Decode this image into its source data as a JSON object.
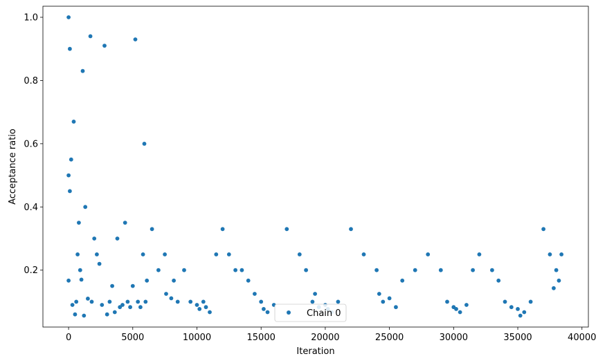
{
  "chart_data": {
    "type": "scatter",
    "xlabel": "Iteration",
    "ylabel": "Acceptance ratio",
    "xlim": [
      -2000,
      40500
    ],
    "ylim": [
      0.02,
      1.035
    ],
    "xticks": [
      0,
      5000,
      10000,
      15000,
      20000,
      25000,
      30000,
      35000,
      40000
    ],
    "xtick_labels": [
      "0",
      "5000",
      "10000",
      "15000",
      "20000",
      "25000",
      "30000",
      "35000",
      "40000"
    ],
    "yticks": [
      0.2,
      0.4,
      0.6,
      0.8,
      1.0
    ],
    "ytick_labels": [
      "0.2",
      "0.4",
      "0.6",
      "0.8",
      "1.0"
    ],
    "grid": false,
    "legend_position": "lower center",
    "series": [
      {
        "name": "Chain 0",
        "color": "#1f77b4",
        "marker": "dot",
        "points": [
          [
            0,
            0.167
          ],
          [
            0,
            1.0
          ],
          [
            0,
            0.5
          ],
          [
            100,
            0.9
          ],
          [
            100,
            0.45
          ],
          [
            200,
            0.55
          ],
          [
            300,
            0.09
          ],
          [
            400,
            0.67
          ],
          [
            500,
            0.06
          ],
          [
            600,
            0.1
          ],
          [
            700,
            0.25
          ],
          [
            800,
            0.35
          ],
          [
            900,
            0.2
          ],
          [
            1000,
            0.17
          ],
          [
            1100,
            0.83
          ],
          [
            1200,
            0.056
          ],
          [
            1300,
            0.4
          ],
          [
            1500,
            0.11
          ],
          [
            1700,
            0.94
          ],
          [
            1800,
            0.1
          ],
          [
            2000,
            0.3
          ],
          [
            2200,
            0.25
          ],
          [
            2400,
            0.22
          ],
          [
            2600,
            0.09
          ],
          [
            2800,
            0.91
          ],
          [
            3000,
            0.06
          ],
          [
            3200,
            0.1
          ],
          [
            3400,
            0.15
          ],
          [
            3600,
            0.067
          ],
          [
            3800,
            0.3
          ],
          [
            4000,
            0.083
          ],
          [
            4200,
            0.09
          ],
          [
            4400,
            0.35
          ],
          [
            4600,
            0.1
          ],
          [
            4800,
            0.083
          ],
          [
            5000,
            0.15
          ],
          [
            5200,
            0.93
          ],
          [
            5400,
            0.1
          ],
          [
            5600,
            0.083
          ],
          [
            5800,
            0.25
          ],
          [
            5900,
            0.6
          ],
          [
            6000,
            0.1
          ],
          [
            6100,
            0.167
          ],
          [
            6500,
            0.33
          ],
          [
            7000,
            0.2
          ],
          [
            7500,
            0.25
          ],
          [
            7600,
            0.125
          ],
          [
            8000,
            0.111
          ],
          [
            8200,
            0.167
          ],
          [
            8500,
            0.1
          ],
          [
            9000,
            0.2
          ],
          [
            9500,
            0.1
          ],
          [
            10000,
            0.09
          ],
          [
            10200,
            0.077
          ],
          [
            10500,
            0.1
          ],
          [
            10700,
            0.083
          ],
          [
            11000,
            0.067
          ],
          [
            11500,
            0.25
          ],
          [
            12000,
            0.33
          ],
          [
            12500,
            0.25
          ],
          [
            13000,
            0.2
          ],
          [
            13500,
            0.2
          ],
          [
            14000,
            0.167
          ],
          [
            14500,
            0.125
          ],
          [
            15000,
            0.1
          ],
          [
            15200,
            0.077
          ],
          [
            15500,
            0.067
          ],
          [
            16000,
            0.09
          ],
          [
            17000,
            0.33
          ],
          [
            18000,
            0.25
          ],
          [
            18500,
            0.2
          ],
          [
            19000,
            0.1
          ],
          [
            19200,
            0.125
          ],
          [
            19500,
            0.083
          ],
          [
            20000,
            0.09
          ],
          [
            20200,
            0.077
          ],
          [
            20500,
            0.067
          ],
          [
            21000,
            0.1
          ],
          [
            22000,
            0.33
          ],
          [
            23000,
            0.25
          ],
          [
            24000,
            0.2
          ],
          [
            24200,
            0.125
          ],
          [
            24500,
            0.1
          ],
          [
            25000,
            0.111
          ],
          [
            25500,
            0.083
          ],
          [
            26000,
            0.167
          ],
          [
            27000,
            0.2
          ],
          [
            28000,
            0.25
          ],
          [
            29000,
            0.2
          ],
          [
            29500,
            0.1
          ],
          [
            30000,
            0.083
          ],
          [
            30200,
            0.077
          ],
          [
            30500,
            0.067
          ],
          [
            31000,
            0.09
          ],
          [
            31500,
            0.2
          ],
          [
            32000,
            0.25
          ],
          [
            33000,
            0.2
          ],
          [
            33500,
            0.167
          ],
          [
            34000,
            0.1
          ],
          [
            34500,
            0.083
          ],
          [
            35000,
            0.077
          ],
          [
            35200,
            0.056
          ],
          [
            35500,
            0.067
          ],
          [
            36000,
            0.1
          ],
          [
            37000,
            0.33
          ],
          [
            37500,
            0.25
          ],
          [
            37800,
            0.143
          ],
          [
            38000,
            0.2
          ],
          [
            38200,
            0.167
          ],
          [
            38400,
            0.25
          ]
        ]
      }
    ]
  }
}
